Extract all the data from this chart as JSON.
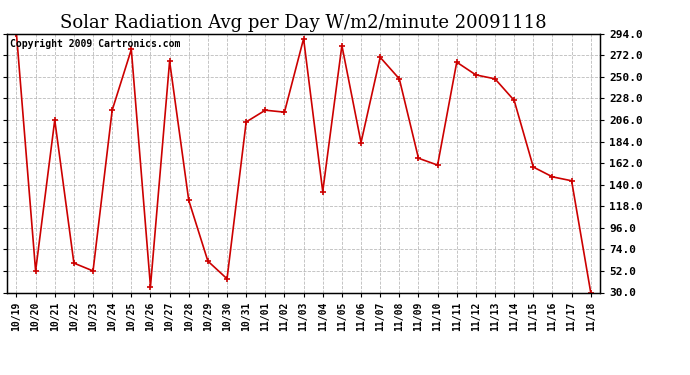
{
  "title": "Solar Radiation Avg per Day W/m2/minute 20091118",
  "copyright": "Copyright 2009 Cartronics.com",
  "labels": [
    "10/19",
    "10/20",
    "10/21",
    "10/22",
    "10/23",
    "10/24",
    "10/25",
    "10/26",
    "10/27",
    "10/28",
    "10/29",
    "10/30",
    "10/31",
    "11/01",
    "11/02",
    "11/03",
    "11/04",
    "11/05",
    "11/06",
    "11/07",
    "11/08",
    "11/09",
    "11/10",
    "11/11",
    "11/12",
    "11/13",
    "11/14",
    "11/15",
    "11/16",
    "11/17",
    "11/18"
  ],
  "values": [
    294.0,
    52.0,
    206.0,
    60.0,
    52.0,
    216.0,
    278.0,
    36.0,
    266.0,
    124.0,
    62.0,
    44.0,
    204.0,
    216.0,
    214.0,
    289.0,
    133.0,
    282.0,
    183.0,
    270.0,
    248.0,
    167.0,
    160.0,
    265.0,
    252.0,
    248.0,
    226.0,
    158.0,
    148.0,
    144.0,
    30.0
  ],
  "line_color": "#cc0000",
  "marker_color": "#cc0000",
  "bg_color": "#ffffff",
  "grid_color": "#aaaaaa",
  "yticks": [
    30.0,
    52.0,
    74.0,
    96.0,
    118.0,
    140.0,
    162.0,
    184.0,
    206.0,
    228.0,
    250.0,
    272.0,
    294.0
  ],
  "ymin": 30.0,
  "ymax": 294.0,
  "title_fontsize": 13,
  "copyright_fontsize": 7,
  "tick_fontsize": 8,
  "xtick_fontsize": 7
}
